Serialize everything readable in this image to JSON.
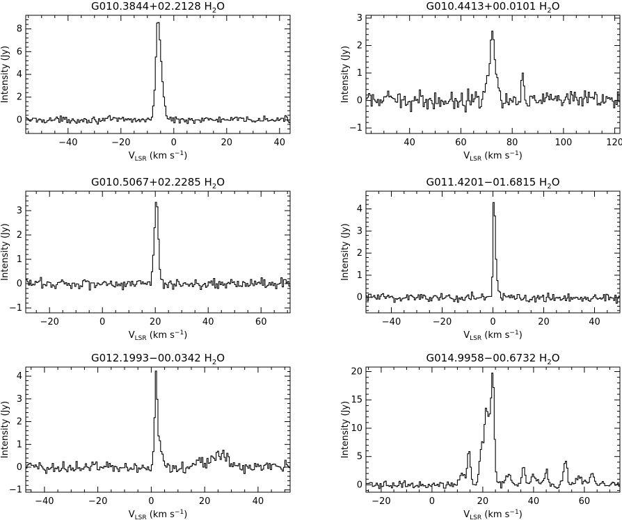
{
  "chart_data": [
    {
      "type": "line",
      "title": "G010.3844+02.2128 H",
      "title_sub": "2",
      "title_tail": "O",
      "xlabel_main": "V",
      "xlabel_sub": "LSR",
      "xlabel_unit": "(km s",
      "xlabel_exp": "−1",
      "xlabel_close": ")",
      "ylabel": "Intensity (Jy)",
      "xlim": [
        -56,
        44
      ],
      "ylim": [
        -1.2,
        9.2
      ],
      "xticks": [
        -40,
        -20,
        0,
        20,
        40
      ],
      "yticks": [
        0,
        2,
        4,
        6,
        8
      ],
      "noise": 0.22,
      "peaks": [
        [
          -6.0,
          7.6,
          0.7
        ],
        [
          -4.6,
          3.5,
          0.9
        ],
        [
          -7.2,
          1.2,
          0.6
        ]
      ],
      "grid": false
    },
    {
      "type": "line",
      "title": "G010.4413+00.0101 H",
      "title_sub": "2",
      "title_tail": "O",
      "xlabel_main": "V",
      "xlabel_sub": "LSR",
      "xlabel_unit": "(km s",
      "xlabel_exp": "−1",
      "xlabel_close": ")",
      "ylabel": "Intensity (Jy)",
      "xlim": [
        23,
        122
      ],
      "ylim": [
        -1.2,
        3.1
      ],
      "xticks": [
        40,
        60,
        80,
        100,
        120
      ],
      "yticks": [
        -1,
        0,
        1,
        2,
        3
      ],
      "noise": 0.24,
      "peaks": [
        [
          72.3,
          2.7,
          0.8
        ],
        [
          70.0,
          0.9,
          0.7
        ],
        [
          84.0,
          1.2,
          0.5
        ],
        [
          66.0,
          0.5,
          0.6
        ],
        [
          74.5,
          0.6,
          0.6
        ]
      ],
      "grid": false
    },
    {
      "type": "line",
      "title": "G010.5067+02.2285 H",
      "title_sub": "2",
      "title_tail": "O",
      "xlabel_main": "V",
      "xlabel_sub": "LSR",
      "xlabel_unit": "(km s",
      "xlabel_exp": "−1",
      "xlabel_close": ")",
      "ylabel": "Intensity (Jy)",
      "xlim": [
        -29,
        71
      ],
      "ylim": [
        -1.2,
        3.8
      ],
      "xticks": [
        -20,
        0,
        20,
        40,
        60
      ],
      "yticks": [
        -1,
        0,
        1,
        2,
        3
      ],
      "noise": 0.17,
      "peaks": [
        [
          20.6,
          3.3,
          0.6
        ],
        [
          19.6,
          1.0,
          0.5
        ]
      ],
      "grid": false
    },
    {
      "type": "line",
      "title": "G011.4201−01.6815 H",
      "title_sub": "2",
      "title_tail": "O",
      "xlabel_main": "V",
      "xlabel_sub": "LSR",
      "xlabel_unit": "(km s",
      "xlabel_exp": "−1",
      "xlabel_close": ")",
      "ylabel": "Intensity (Jy)",
      "xlim": [
        -50,
        50
      ],
      "ylim": [
        -0.7,
        4.8
      ],
      "xticks": [
        -40,
        -20,
        0,
        20,
        40
      ],
      "yticks": [
        0,
        1,
        2,
        3,
        4
      ],
      "noise": 0.17,
      "peaks": [
        [
          0.4,
          4.4,
          0.35
        ],
        [
          1.2,
          1.4,
          0.5
        ]
      ],
      "grid": false
    },
    {
      "type": "line",
      "title": "G012.1993−00.0342 H",
      "title_sub": "2",
      "title_tail": "O",
      "xlabel_main": "V",
      "xlabel_sub": "LSR",
      "xlabel_unit": "(km s",
      "xlabel_exp": "−1",
      "xlabel_close": ")",
      "ylabel": "Intensity (Jy)",
      "xlim": [
        -47,
        52
      ],
      "ylim": [
        -1.1,
        4.4
      ],
      "xticks": [
        -40,
        -20,
        0,
        20,
        40
      ],
      "yticks": [
        -1,
        0,
        1,
        2,
        3,
        4
      ],
      "noise": 0.2,
      "peaks": [
        [
          1.8,
          3.8,
          0.5
        ],
        [
          3.2,
          1.0,
          0.9
        ],
        [
          26.0,
          0.5,
          3.0
        ],
        [
          18.0,
          0.3,
          2.0
        ]
      ],
      "grid": false
    },
    {
      "type": "line",
      "title": "G014.9958−00.6732 H",
      "title_sub": "2",
      "title_tail": "O",
      "xlabel_main": "V",
      "xlabel_sub": "LSR",
      "xlabel_unit": "(km s",
      "xlabel_exp": "−1",
      "xlabel_close": ")",
      "ylabel": "Intensity (Jy)",
      "xlim": [
        -26,
        74
      ],
      "ylim": [
        -1.3,
        20.8
      ],
      "xticks": [
        -20,
        0,
        20,
        40,
        60
      ],
      "yticks": [
        0,
        5,
        10,
        15,
        20
      ],
      "noise": 0.45,
      "peaks": [
        [
          24.0,
          18.0,
          0.6
        ],
        [
          21.5,
          13.0,
          0.8
        ],
        [
          19.5,
          6.5,
          0.8
        ],
        [
          14.5,
          6.0,
          0.6
        ],
        [
          23.0,
          7.0,
          0.6
        ],
        [
          52.5,
          4.3,
          0.7
        ],
        [
          36.0,
          3.5,
          0.6
        ],
        [
          12.0,
          2.0,
          1.0
        ],
        [
          45.0,
          2.2,
          0.8
        ],
        [
          63.0,
          2.0,
          0.8
        ],
        [
          30.0,
          1.8,
          1.0
        ],
        [
          40.0,
          1.5,
          1.0
        ],
        [
          58.0,
          1.2,
          1.2
        ]
      ],
      "grid": false
    }
  ]
}
